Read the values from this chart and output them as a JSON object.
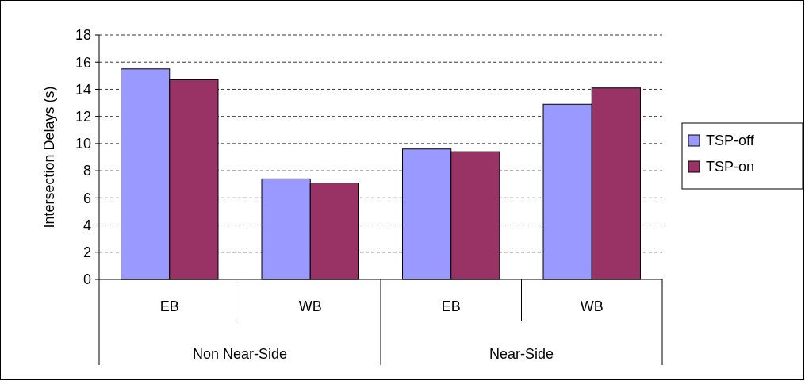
{
  "chart_data": {
    "type": "bar",
    "ylabel": "Intersection Delays (s)",
    "categories": [
      "EB",
      "WB",
      "EB",
      "WB"
    ],
    "annotations": [
      "Non Near-Side",
      "Near-Side"
    ],
    "series": [
      {
        "name": "TSP-off",
        "color": "#9999ff",
        "values": [
          15.5,
          7.4,
          9.6,
          12.9
        ]
      },
      {
        "name": "TSP-on",
        "color": "#993366",
        "values": [
          14.7,
          7.1,
          9.4,
          14.1
        ]
      }
    ],
    "ylim": [
      0,
      18
    ],
    "yticks": [
      0,
      2,
      4,
      6,
      8,
      10,
      12,
      14,
      16,
      18
    ],
    "grid": "y",
    "legend": "right"
  }
}
